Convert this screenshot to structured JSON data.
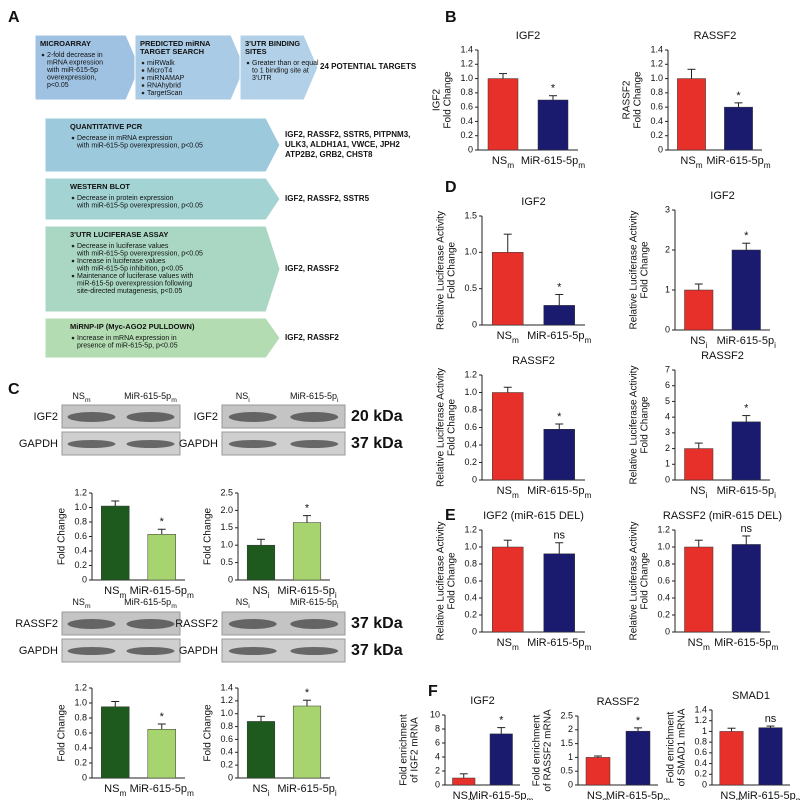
{
  "panel_labels": [
    "A",
    "B",
    "C",
    "D",
    "E",
    "F"
  ],
  "flowchart": {
    "steps": [
      {
        "columns": [
          {
            "title": [
              "MICROARRAY"
            ],
            "bullets": [
              [
                "2-fold decrease in",
                "mRNA expression",
                "with miR-615-5p",
                "overexpression,",
                "p<0.05"
              ]
            ]
          },
          {
            "title": [
              "PREDICTED miRNA",
              "TARGET SEARCH"
            ],
            "bullets": [
              [
                "miRWalk"
              ],
              [
                "MicroT4"
              ],
              [
                "miRNAMAP"
              ],
              [
                "RNAhybrid"
              ],
              [
                "TargetScan"
              ]
            ]
          },
          {
            "title": [
              "3'UTR BINDING",
              "SITES"
            ],
            "bullets": [
              [
                "Greater than or equal",
                "to 1 binding site at",
                "3'UTR"
              ]
            ]
          }
        ],
        "result": [
          "24 POTENTIAL TARGETS"
        ]
      },
      {
        "title": [
          "QUANTITATIVE PCR"
        ],
        "bullets": [
          [
            "Decrease in mRNA expression",
            "with miR-615-5p overexpression, p<0.05"
          ]
        ],
        "result": [
          "IGF2, RASSF2, SSTR5, PITPNM3,",
          "ULK3, ALDH1A1, VWCE, JPH2",
          "ATP2B2, GRB2, CHST8"
        ]
      },
      {
        "title": [
          "WESTERN BLOT"
        ],
        "bullets": [
          [
            "Decrease in protein expression",
            "with miR-615-5p overexpression,  p<0.05"
          ]
        ],
        "result": [
          "IGF2, RASSF2, SSTR5"
        ]
      },
      {
        "title": [
          "3'UTR LUCIFERASE ASSAY"
        ],
        "bullets": [
          [
            "Decrease in luciferase values",
            "with miR-615-5p overexpression, p<0.05"
          ],
          [
            "Increase in luciferase values",
            "with miR-615-5p inhibition, p<0.05"
          ],
          [
            "Maintenance of luciferase values with",
            "miR-615-5p overexpression following",
            "site-directed mutagenesis, p<0.05"
          ]
        ],
        "result": [
          "IGF2, RASSF2"
        ]
      },
      {
        "title": [
          "MiRNP-IP (Myc-AGO2 PULLDOWN)"
        ],
        "bullets": [
          [
            "Increase in mRNA expression in",
            "presence of miR-615-5p, p<0.05"
          ]
        ],
        "result": [
          "IGF2, RASSF2"
        ]
      }
    ]
  },
  "blots": [
    {
      "lanes": [
        "NSm",
        "MiR-615-5pm"
      ],
      "rows": [
        "IGF2",
        "GAPDH"
      ]
    },
    {
      "lanes": [
        "NSi",
        "MiR-615-5pi"
      ],
      "rows": [
        "IGF2",
        "GAPDH"
      ],
      "sizes": [
        "20 kDa",
        "37 kDa"
      ]
    },
    {
      "lanes": [
        "NSm",
        "MiR-615-5pm"
      ],
      "rows": [
        "RASSF2",
        "GAPDH"
      ]
    },
    {
      "lanes": [
        "NSi",
        "MiR-615-5pi"
      ],
      "rows": [
        "RASSF2",
        "GAPDH"
      ],
      "sizes": [
        "37 kDa",
        "37 kDa"
      ]
    }
  ],
  "chart_data": [
    {
      "type": "bar",
      "title": "IGF2",
      "ylabel": [
        "IGF2",
        "Fold Change"
      ],
      "categories": [
        "NSm",
        "MiR-615-5pm"
      ],
      "values": [
        1.0,
        0.7
      ],
      "errors": [
        0.07,
        0.06
      ],
      "annotations": [
        null,
        "*"
      ],
      "colors": [
        "#e8302a",
        "#1a1a6e"
      ],
      "ylim": [
        0,
        1.4
      ],
      "yticks": [
        0,
        0.2,
        0.4,
        0.6,
        0.8,
        {
          "value": 1,
          "label": "1.0"
        },
        1.2,
        1.4
      ]
    },
    {
      "type": "bar",
      "title": "RASSF2",
      "ylabel": [
        "RASSF2",
        "Fold Change"
      ],
      "categories": [
        "NSm",
        "MiR-615-5pm"
      ],
      "values": [
        1.0,
        0.6
      ],
      "errors": [
        0.13,
        0.06
      ],
      "annotations": [
        null,
        "*"
      ],
      "colors": [
        "#e8302a",
        "#1a1a6e"
      ],
      "ylim": [
        0,
        1.4
      ],
      "yticks": [
        0,
        0.2,
        0.4,
        0.6,
        0.8,
        {
          "value": 1,
          "label": "1.0"
        },
        1.2,
        1.4
      ]
    },
    {
      "type": "bar",
      "title": "IGF2",
      "ylabel": [
        "Relative Luciferase Activity",
        "Fold Change"
      ],
      "categories": [
        "NSm",
        "MiR-615-5pm"
      ],
      "values": [
        1.0,
        0.27
      ],
      "errors": [
        0.25,
        0.15
      ],
      "annotations": [
        null,
        "*"
      ],
      "colors": [
        "#e8302a",
        "#1a1a6e"
      ],
      "ylim": [
        0,
        1.5
      ],
      "yticks": [
        0,
        0.5,
        {
          "value": 1,
          "label": "1.0"
        },
        1.5
      ]
    },
    {
      "type": "bar",
      "title": "IGF2",
      "ylabel": [
        "Relative Luciferase Activity",
        "Fold Change"
      ],
      "categories": [
        "NSi",
        "MiR-615-5pi"
      ],
      "values": [
        1.0,
        2.0
      ],
      "errors": [
        0.15,
        0.17
      ],
      "annotations": [
        null,
        "*"
      ],
      "colors": [
        "#e8302a",
        "#1a1a6e"
      ],
      "ylim": [
        0,
        3
      ],
      "yticks": [
        0,
        1,
        2,
        3
      ]
    },
    {
      "type": "bar",
      "title": "RASSF2",
      "ylabel": [
        "Relative Luciferase Activity",
        "Fold Change"
      ],
      "categories": [
        "NSm",
        "MiR-615-5pm"
      ],
      "values": [
        1.0,
        0.58
      ],
      "errors": [
        0.06,
        0.06
      ],
      "annotations": [
        null,
        "*"
      ],
      "colors": [
        "#e8302a",
        "#1a1a6e"
      ],
      "ylim": [
        0,
        1.2
      ],
      "yticks": [
        0,
        0.2,
        0.4,
        0.6,
        0.8,
        {
          "value": 1,
          "label": "1.0"
        },
        1.2
      ]
    },
    {
      "type": "bar",
      "title": "RASSF2",
      "ylabel": [
        "Relative Luciferase Activity",
        "Fold Change"
      ],
      "categories": [
        "NSi",
        "MiR-615-5pi"
      ],
      "values": [
        2.0,
        3.7
      ],
      "errors": [
        0.35,
        0.4
      ],
      "annotations": [
        null,
        "*"
      ],
      "colors": [
        "#e8302a",
        "#1a1a6e"
      ],
      "ylim": [
        0,
        7
      ],
      "yticks": [
        0,
        1,
        2,
        3,
        4,
        5,
        6,
        7
      ]
    },
    {
      "type": "bar",
      "title": "IGF2 (miR-615 DEL)",
      "ylabel": [
        "Relative Luciferase Activity",
        "Fold Change"
      ],
      "categories": [
        "NSm",
        "MiR-615-5pm"
      ],
      "values": [
        1.0,
        0.92
      ],
      "errors": [
        0.08,
        0.13
      ],
      "annotations": [
        null,
        "ns"
      ],
      "colors": [
        "#e8302a",
        "#1a1a6e"
      ],
      "ylim": [
        0,
        1.2
      ],
      "yticks": [
        0,
        0.2,
        0.4,
        0.6,
        0.8,
        {
          "value": 1,
          "label": "1.0"
        },
        1.2
      ]
    },
    {
      "type": "bar",
      "title": "RASSF2 (miR-615 DEL)",
      "ylabel": [
        "Relative Luciferase Activity",
        "Fold Change"
      ],
      "categories": [
        "NSm",
        "MiR-615-5pm"
      ],
      "values": [
        1.0,
        1.03
      ],
      "errors": [
        0.08,
        0.1
      ],
      "annotations": [
        null,
        "ns"
      ],
      "colors": [
        "#e8302a",
        "#1a1a6e"
      ],
      "ylim": [
        0,
        1.2
      ],
      "yticks": [
        0,
        0.2,
        0.4,
        0.6,
        0.8,
        {
          "value": 1,
          "label": "1.0"
        },
        1.2
      ]
    },
    {
      "type": "bar",
      "title": "IGF2",
      "ylabel": [
        "Fold enrichment",
        "of IGF2 mRNA"
      ],
      "categories": [
        "NSm",
        "MiR-615-5pm"
      ],
      "values": [
        1.0,
        7.3
      ],
      "errors": [
        0.6,
        0.9
      ],
      "annotations": [
        null,
        "*"
      ],
      "colors": [
        "#e8302a",
        "#1a1a6e"
      ],
      "ylim": [
        0,
        10
      ],
      "yticks": [
        0,
        2,
        4,
        6,
        8,
        10
      ]
    },
    {
      "type": "bar",
      "title": "RASSF2",
      "ylabel": [
        "Fold enrichment",
        "of RASSF2 mRNA"
      ],
      "categories": [
        "NSm",
        "MiR-615-5pm"
      ],
      "values": [
        1.0,
        1.95
      ],
      "errors": [
        0.05,
        0.12
      ],
      "annotations": [
        null,
        "*"
      ],
      "colors": [
        "#e8302a",
        "#1a1a6e"
      ],
      "ylim": [
        0,
        2.5
      ],
      "yticks": [
        0,
        0.5,
        1,
        1.5,
        2,
        2.5
      ]
    },
    {
      "type": "bar",
      "title": "SMAD1",
      "ylabel": [
        "Fold enrichment",
        "of SMAD1 mRNA"
      ],
      "categories": [
        "NSm",
        "MiR-615-5pm"
      ],
      "values": [
        1.0,
        1.07
      ],
      "errors": [
        0.06,
        0.03
      ],
      "annotations": [
        null,
        "ns"
      ],
      "colors": [
        "#e8302a",
        "#1a1a6e"
      ],
      "ylim": [
        0,
        1.4
      ],
      "yticks": [
        0,
        0.2,
        0.4,
        0.6,
        0.8,
        1,
        1.2,
        1.4
      ]
    },
    {
      "type": "bar",
      "ylabel": [
        "Fold Change"
      ],
      "categories": [
        "NSm",
        "MiR-615-5pm"
      ],
      "values": [
        1.02,
        0.63
      ],
      "errors": [
        0.07,
        0.07
      ],
      "annotations": [
        null,
        "*"
      ],
      "colors": [
        "#1e5a1e",
        "#a8d46f"
      ],
      "ylim": [
        0,
        1.2
      ],
      "yticks": [
        0,
        0.2,
        0.4,
        0.6,
        0.8,
        {
          "value": 1,
          "label": "1.0"
        },
        1.2
      ]
    },
    {
      "type": "bar",
      "ylabel": [
        "Fold Change"
      ],
      "categories": [
        "NSi",
        "MiR-615-5pi"
      ],
      "values": [
        1.0,
        1.65
      ],
      "errors": [
        0.17,
        0.2
      ],
      "annotations": [
        null,
        "*"
      ],
      "colors": [
        "#1e5a1e",
        "#a8d46f"
      ],
      "ylim": [
        0,
        2.5
      ],
      "yticks": [
        0,
        0.5,
        {
          "value": 1,
          "label": "1.0"
        },
        1.5,
        {
          "value": 2,
          "label": "2.0"
        },
        2.5
      ]
    },
    {
      "type": "bar",
      "ylabel": [
        "Fold Change"
      ],
      "categories": [
        "NSm",
        "MiR-615-5pm"
      ],
      "values": [
        0.95,
        0.65
      ],
      "errors": [
        0.07,
        0.07
      ],
      "annotations": [
        null,
        "*"
      ],
      "colors": [
        "#1e5a1e",
        "#a8d46f"
      ],
      "ylim": [
        0,
        1.2
      ],
      "yticks": [
        0,
        0.2,
        0.4,
        0.6,
        0.8,
        {
          "value": 1,
          "label": "1.0"
        },
        1.2
      ]
    },
    {
      "type": "bar",
      "ylabel": [
        "Fold Change"
      ],
      "categories": [
        "NSi",
        "MiR-615-5pi"
      ],
      "values": [
        0.88,
        1.12
      ],
      "errors": [
        0.08,
        0.09
      ],
      "annotations": [
        null,
        "*"
      ],
      "colors": [
        "#1e5a1e",
        "#a8d46f"
      ],
      "ylim": [
        0,
        1.4
      ],
      "yticks": [
        0,
        0.2,
        0.4,
        0.6,
        0.8,
        {
          "value": 1,
          "label": "1.0"
        },
        1.2,
        1.4
      ]
    }
  ]
}
